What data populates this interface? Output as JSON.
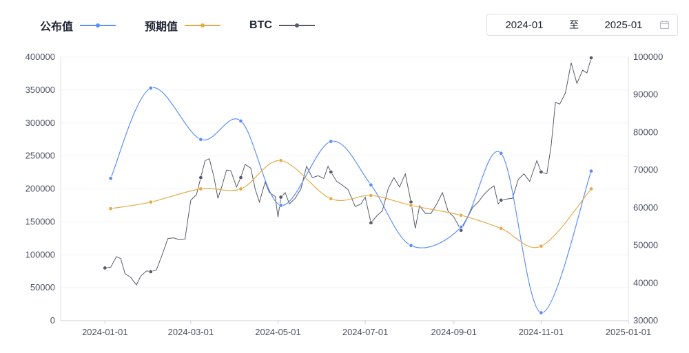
{
  "legend": [
    {
      "label": "公布值",
      "color": "#5b8ff9"
    },
    {
      "label": "预期值",
      "color": "#e5a948"
    },
    {
      "label": "BTC",
      "color": "#555b6a"
    }
  ],
  "range": {
    "start": "2024-01",
    "separator": "至",
    "end": "2025-01",
    "icon": "calendar-icon"
  },
  "chart_data": {
    "type": "line",
    "x_axis": {
      "type": "date",
      "min": "2023-12-01",
      "max": "2025-01-01",
      "ticks": [
        "2024-01-01",
        "2024-03-01",
        "2024-05-01",
        "2024-07-01",
        "2024-09-01",
        "2024-11-01",
        "2025-01-01"
      ]
    },
    "y_left": {
      "min": 0,
      "max": 400000,
      "ticks": [
        "0",
        "50000",
        "100000",
        "150000",
        "200000",
        "250000",
        "300000",
        "350000",
        "400000"
      ]
    },
    "y_right": {
      "min": 30000,
      "max": 100000,
      "ticks": [
        "30000",
        "40000",
        "50000",
        "60000",
        "70000",
        "80000",
        "90000",
        "100000"
      ]
    },
    "grid": true,
    "legend_position": "top-left",
    "series": [
      {
        "name": "公布值",
        "axis": "left",
        "color": "#5b8ff9",
        "points": [
          [
            "2024-01-05",
            216000
          ],
          [
            "2024-02-02",
            353000
          ],
          [
            "2024-03-08",
            275000
          ],
          [
            "2024-04-05",
            303000
          ],
          [
            "2024-05-03",
            175000
          ],
          [
            "2024-06-07",
            272000
          ],
          [
            "2024-07-05",
            206000
          ],
          [
            "2024-08-02",
            114000
          ],
          [
            "2024-09-06",
            142000
          ],
          [
            "2024-10-04",
            254000
          ],
          [
            "2024-11-01",
            12000
          ],
          [
            "2024-12-06",
            227000
          ]
        ]
      },
      {
        "name": "预期值",
        "axis": "left",
        "color": "#e5a948",
        "points": [
          [
            "2024-01-05",
            170000
          ],
          [
            "2024-02-02",
            180000
          ],
          [
            "2024-03-08",
            200000
          ],
          [
            "2024-04-05",
            200000
          ],
          [
            "2024-05-03",
            243000
          ],
          [
            "2024-06-07",
            185000
          ],
          [
            "2024-07-05",
            190000
          ],
          [
            "2024-08-02",
            175000
          ],
          [
            "2024-09-06",
            160000
          ],
          [
            "2024-10-04",
            140000
          ],
          [
            "2024-11-01",
            113000
          ],
          [
            "2024-12-06",
            200000
          ]
        ]
      },
      {
        "name": "BTC",
        "axis": "right",
        "color": "#555b6a",
        "points": [
          [
            "2024-01-01",
            44000
          ],
          [
            "2024-01-05",
            44200
          ],
          [
            "2024-01-09",
            47000
          ],
          [
            "2024-01-12",
            46500
          ],
          [
            "2024-01-15",
            42500
          ],
          [
            "2024-01-19",
            41500
          ],
          [
            "2024-01-23",
            39500
          ],
          [
            "2024-01-26",
            41800
          ],
          [
            "2024-01-30",
            43200
          ],
          [
            "2024-02-02",
            43000
          ],
          [
            "2024-02-06",
            43500
          ],
          [
            "2024-02-10",
            47500
          ],
          [
            "2024-02-14",
            51800
          ],
          [
            "2024-02-18",
            52000
          ],
          [
            "2024-02-22",
            51500
          ],
          [
            "2024-02-26",
            51700
          ],
          [
            "2024-02-28",
            57000
          ],
          [
            "2024-03-01",
            62000
          ],
          [
            "2024-03-05",
            63500
          ],
          [
            "2024-03-08",
            68000
          ],
          [
            "2024-03-11",
            72500
          ],
          [
            "2024-03-14",
            73000
          ],
          [
            "2024-03-17",
            68500
          ],
          [
            "2024-03-20",
            62500
          ],
          [
            "2024-03-23",
            66000
          ],
          [
            "2024-03-26",
            70000
          ],
          [
            "2024-03-29",
            69800
          ],
          [
            "2024-04-02",
            65500
          ],
          [
            "2024-04-05",
            68000
          ],
          [
            "2024-04-08",
            71500
          ],
          [
            "2024-04-12",
            70500
          ],
          [
            "2024-04-15",
            65000
          ],
          [
            "2024-04-18",
            61500
          ],
          [
            "2024-04-22",
            66800
          ],
          [
            "2024-04-25",
            64000
          ],
          [
            "2024-04-29",
            63000
          ],
          [
            "2024-05-01",
            57500
          ],
          [
            "2024-05-03",
            62800
          ],
          [
            "2024-05-06",
            64000
          ],
          [
            "2024-05-09",
            61000
          ],
          [
            "2024-05-13",
            62500
          ],
          [
            "2024-05-17",
            65000
          ],
          [
            "2024-05-21",
            71000
          ],
          [
            "2024-05-25",
            68000
          ],
          [
            "2024-05-29",
            68500
          ],
          [
            "2024-06-02",
            67800
          ],
          [
            "2024-06-05",
            71000
          ],
          [
            "2024-06-07",
            69500
          ],
          [
            "2024-06-11",
            67000
          ],
          [
            "2024-06-15",
            66000
          ],
          [
            "2024-06-19",
            64800
          ],
          [
            "2024-06-24",
            60300
          ],
          [
            "2024-06-28",
            61000
          ],
          [
            "2024-07-01",
            62800
          ],
          [
            "2024-07-05",
            56000
          ],
          [
            "2024-07-09",
            57800
          ],
          [
            "2024-07-13",
            59200
          ],
          [
            "2024-07-17",
            65000
          ],
          [
            "2024-07-21",
            68000
          ],
          [
            "2024-07-25",
            65500
          ],
          [
            "2024-07-29",
            69000
          ],
          [
            "2024-08-02",
            61500
          ],
          [
            "2024-08-05",
            54500
          ],
          [
            "2024-08-08",
            60500
          ],
          [
            "2024-08-12",
            58500
          ],
          [
            "2024-08-16",
            58500
          ],
          [
            "2024-08-20",
            61000
          ],
          [
            "2024-08-24",
            64000
          ],
          [
            "2024-08-28",
            59000
          ],
          [
            "2024-09-01",
            57500
          ],
          [
            "2024-09-06",
            54000
          ],
          [
            "2024-09-10",
            57000
          ],
          [
            "2024-09-14",
            60000
          ],
          [
            "2024-09-18",
            61500
          ],
          [
            "2024-09-22",
            63500
          ],
          [
            "2024-09-26",
            65000
          ],
          [
            "2024-09-29",
            65800
          ],
          [
            "2024-10-02",
            61000
          ],
          [
            "2024-10-04",
            62000
          ],
          [
            "2024-10-08",
            62300
          ],
          [
            "2024-10-12",
            62500
          ],
          [
            "2024-10-16",
            67500
          ],
          [
            "2024-10-20",
            69000
          ],
          [
            "2024-10-24",
            67000
          ],
          [
            "2024-10-29",
            72500
          ],
          [
            "2024-11-01",
            69500
          ],
          [
            "2024-11-05",
            69000
          ],
          [
            "2024-11-08",
            76500
          ],
          [
            "2024-11-11",
            88000
          ],
          [
            "2024-11-14",
            87500
          ],
          [
            "2024-11-18",
            90500
          ],
          [
            "2024-11-22",
            98500
          ],
          [
            "2024-11-26",
            93000
          ],
          [
            "2024-11-30",
            96500
          ],
          [
            "2024-12-03",
            95800
          ],
          [
            "2024-12-06",
            99800
          ]
        ]
      }
    ]
  }
}
